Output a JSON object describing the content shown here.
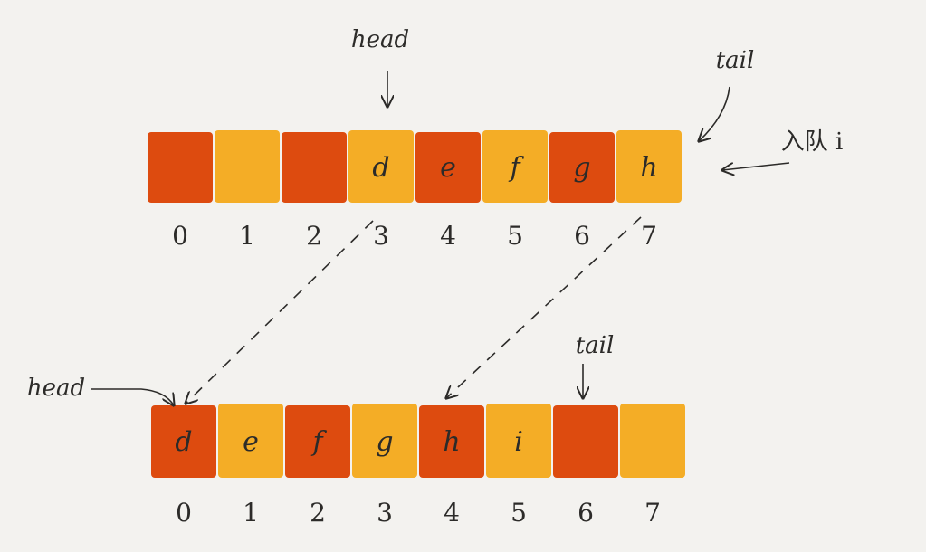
{
  "colors": {
    "background": "#f3f2ef",
    "red": "#dd4b0f",
    "yellow": "#f4ad26",
    "ink": "#2c2b29"
  },
  "top_array": {
    "head_label": "head",
    "tail_label": "tail",
    "insert_label": "入队 i",
    "cells": [
      {
        "index": "0",
        "value": "",
        "color": "red"
      },
      {
        "index": "1",
        "value": "",
        "color": "yellow"
      },
      {
        "index": "2",
        "value": "",
        "color": "red"
      },
      {
        "index": "3",
        "value": "d",
        "color": "yellow"
      },
      {
        "index": "4",
        "value": "e",
        "color": "red"
      },
      {
        "index": "5",
        "value": "f",
        "color": "yellow"
      },
      {
        "index": "6",
        "value": "g",
        "color": "red"
      },
      {
        "index": "7",
        "value": "h",
        "color": "yellow"
      }
    ]
  },
  "bottom_array": {
    "head_label": "head",
    "tail_label": "tail",
    "cells": [
      {
        "index": "0",
        "value": "d",
        "color": "red"
      },
      {
        "index": "1",
        "value": "e",
        "color": "yellow"
      },
      {
        "index": "2",
        "value": "f",
        "color": "red"
      },
      {
        "index": "3",
        "value": "g",
        "color": "yellow"
      },
      {
        "index": "4",
        "value": "h",
        "color": "red"
      },
      {
        "index": "5",
        "value": "i",
        "color": "yellow"
      },
      {
        "index": "6",
        "value": "",
        "color": "red"
      },
      {
        "index": "7",
        "value": "",
        "color": "yellow"
      }
    ]
  }
}
